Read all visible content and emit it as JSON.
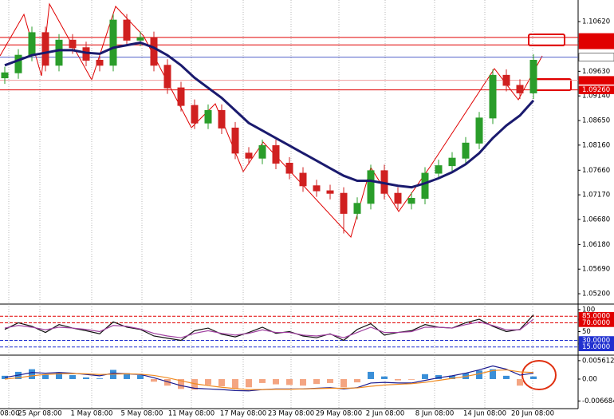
{
  "chart_data": [
    {
      "type": "candlestick",
      "open": [
        1.095,
        1.096,
        1.0995,
        1.104,
        1.0975,
        1.1025,
        1.101,
        1.0985,
        1.0975,
        1.1065,
        1.1025,
        1.103,
        1.0975,
        1.093,
        1.0895,
        1.086,
        1.0885,
        1.085,
        1.08,
        1.079,
        1.0815,
        1.078,
        1.076,
        1.0735,
        1.0725,
        1.072,
        1.068,
        1.07,
        1.0765,
        1.072,
        1.07,
        1.071,
        1.076,
        1.0775,
        1.079,
        1.082,
        1.087,
        1.0955,
        1.0935,
        1.092
      ],
      "high": [
        1.0972,
        1.1007,
        1.1052,
        1.1052,
        1.1037,
        1.1037,
        1.1022,
        1.0997,
        1.1077,
        1.1077,
        1.1042,
        1.1042,
        1.0987,
        1.0942,
        1.0907,
        1.0897,
        1.0897,
        1.0862,
        1.0812,
        1.0827,
        1.0827,
        1.0792,
        1.0772,
        1.0747,
        1.0737,
        1.0732,
        1.0712,
        1.0777,
        1.0777,
        1.0732,
        1.0722,
        1.0772,
        1.0787,
        1.0802,
        1.0832,
        1.0882,
        1.0967,
        1.0967,
        1.0947,
        1.0997
      ],
      "low": [
        1.0938,
        1.0948,
        1.0983,
        1.0963,
        1.0963,
        1.0998,
        1.0973,
        1.0963,
        1.0963,
        1.1013,
        1.1013,
        1.0963,
        1.0918,
        1.0883,
        1.0848,
        1.0848,
        1.0838,
        1.0788,
        1.0778,
        1.0778,
        1.0768,
        1.0748,
        1.0723,
        1.0713,
        1.0708,
        1.064,
        1.0668,
        1.0688,
        1.0708,
        1.0688,
        1.0688,
        1.0698,
        1.0748,
        1.0763,
        1.0778,
        1.0808,
        1.0858,
        1.0923,
        1.0908,
        1.0908
      ],
      "close": [
        1.096,
        1.0995,
        1.104,
        1.0975,
        1.1025,
        1.101,
        1.0985,
        1.0975,
        1.1065,
        1.1025,
        1.103,
        1.0975,
        1.093,
        1.0895,
        1.086,
        1.0885,
        1.085,
        1.08,
        1.079,
        1.0815,
        1.078,
        1.076,
        1.0735,
        1.0725,
        1.072,
        1.068,
        1.07,
        1.0765,
        1.072,
        1.07,
        1.071,
        1.076,
        1.0775,
        1.079,
        1.082,
        1.087,
        1.0955,
        1.0935,
        1.092,
        1.0985
      ],
      "up_color": "#2a9d2a",
      "down_color": "#d02020",
      "series": [
        {
          "color": "#1a1a6e",
          "values": [
            1.0975,
            1.0985,
            1.0995,
            1.1,
            1.1005,
            1.1005,
            1.1,
            1.0998,
            1.101,
            1.1015,
            1.102,
            1.101,
            1.0995,
            1.0975,
            1.095,
            1.093,
            1.091,
            1.0885,
            1.086,
            1.0845,
            1.083,
            1.0815,
            1.08,
            1.0785,
            1.077,
            1.0755,
            1.0745,
            1.0745,
            1.074,
            1.0735,
            1.0732,
            1.074,
            1.075,
            1.0762,
            1.0778,
            1.08,
            1.083,
            1.0855,
            1.0875,
            1.0905
          ]
        }
      ],
      "ylim": [
        1.0501,
        1.1105
      ],
      "yticks": [
        {
          "value": 1.1062,
          "label": "1.10620"
        },
        {
          "value": 1.0963,
          "label": "1.09630"
        },
        {
          "value": 1.0914,
          "label": "1.09140"
        },
        {
          "value": 1.0865,
          "label": "1.08650"
        },
        {
          "value": 1.0816,
          "label": "1.08160"
        },
        {
          "value": 1.0766,
          "label": "1.07660"
        },
        {
          "value": 1.0717,
          "label": "1.07170"
        },
        {
          "value": 1.0668,
          "label": "1.06680"
        },
        {
          "value": 1.0618,
          "label": "1.06180"
        },
        {
          "value": 1.0569,
          "label": "1.05690"
        },
        {
          "value": 1.052,
          "label": "1.05200"
        }
      ],
      "levels": [
        {
          "value": 1.10305,
          "color": "#e00000",
          "box": "#e00000"
        },
        {
          "value": 1.10155,
          "color": "#e00000",
          "box": "#e00000"
        },
        {
          "value": 1.09911,
          "color": "#5060c8",
          "box": "#ffffff"
        },
        {
          "value": 1.09451,
          "color": "#f0a0a0",
          "box": "#e00000"
        },
        {
          "value": 1.0926,
          "label": "1.09260",
          "color": "#e00000",
          "box": "#e00000"
        }
      ],
      "x_labels": [
        "08:00",
        "25 Apr 08:00",
        "1 May 08:00",
        "5 May 08:00",
        "11 May 08:00",
        "17 May 08:00",
        "23 May 08:00",
        "29 May 08:00",
        "2 Jun 08:00",
        "8 Jun 08:00",
        "14 Jun 08:00",
        "20 Jun 08:00"
      ]
    },
    {
      "type": "line",
      "series": [
        {
          "color": "#111111",
          "values": [
            55,
            70,
            62,
            48,
            66,
            58,
            52,
            45,
            72,
            60,
            55,
            40,
            35,
            30,
            52,
            58,
            44,
            38,
            48,
            60,
            46,
            50,
            40,
            36,
            45,
            30,
            55,
            68,
            42,
            48,
            52,
            66,
            60,
            58,
            70,
            78,
            62,
            50,
            55,
            88
          ]
        },
        {
          "color": "#a040a0",
          "values": [
            58,
            64,
            60,
            54,
            60,
            58,
            55,
            50,
            64,
            62,
            56,
            46,
            40,
            36,
            46,
            52,
            46,
            42,
            46,
            54,
            48,
            48,
            42,
            40,
            44,
            36,
            48,
            60,
            48,
            48,
            50,
            60,
            60,
            58,
            66,
            72,
            64,
            54,
            54,
            78
          ]
        }
      ],
      "ylim": [
        0,
        109
      ],
      "yticks": [
        100,
        50
      ],
      "levels": [
        {
          "value": 85,
          "label": "85.0000",
          "color": "#e00000",
          "box": "#e00000"
        },
        {
          "value": 70,
          "label": "70.0000",
          "color": "#e00000",
          "box": "#e00000"
        },
        {
          "value": 30,
          "label": "30.0000",
          "color": "#2030d0",
          "box": "#2030d0"
        },
        {
          "value": 15,
          "label": "15.0000",
          "color": "#2030d0",
          "box": "#2030d0"
        }
      ]
    },
    {
      "type": "bar",
      "values": [
        0.001,
        0.0022,
        0.003,
        0.0015,
        0.002,
        0.0012,
        0.0005,
        0.0002,
        0.0028,
        0.0018,
        0.0012,
        -0.0008,
        -0.002,
        -0.003,
        -0.0032,
        -0.0018,
        -0.0022,
        -0.0028,
        -0.0025,
        -0.0012,
        -0.0016,
        -0.0018,
        -0.002,
        -0.0015,
        -0.0012,
        -0.0025,
        -0.001,
        0.0022,
        0.0008,
        -0.0004,
        -0.0002,
        0.0015,
        0.0012,
        0.001,
        0.0018,
        0.0026,
        0.003,
        0.001,
        -0.002,
        0.0008
      ],
      "color": "#3a8fd8",
      "negative_color": "#f4a582",
      "series": [
        {
          "color": "#1a1a8e",
          "values": [
            0.0005,
            0.0012,
            0.002,
            0.0018,
            0.002,
            0.0018,
            0.0014,
            0.001,
            0.0018,
            0.0016,
            0.0014,
            0.0004,
            -0.0008,
            -0.002,
            -0.0028,
            -0.003,
            -0.0032,
            -0.0035,
            -0.0036,
            -0.0032,
            -0.003,
            -0.003,
            -0.003,
            -0.0028,
            -0.0026,
            -0.003,
            -0.0026,
            -0.0012,
            -0.001,
            -0.0012,
            -0.0012,
            -0.0004,
            0.0004,
            0.001,
            0.0018,
            0.0028,
            0.004,
            0.003,
            0.0012,
            0.0018
          ]
        },
        {
          "color": "#f08a20",
          "values": [
            0.0,
            0.0004,
            0.001,
            0.0014,
            0.0016,
            0.0017,
            0.0016,
            0.0014,
            0.0015,
            0.0016,
            0.0015,
            0.0011,
            0.0004,
            -0.0005,
            -0.0014,
            -0.002,
            -0.0025,
            -0.0029,
            -0.0032,
            -0.0032,
            -0.0031,
            -0.0031,
            -0.003,
            -0.0029,
            -0.0028,
            -0.0028,
            -0.0027,
            -0.0022,
            -0.0018,
            -0.0016,
            -0.0014,
            -0.001,
            -0.0004,
            0.0002,
            0.0008,
            0.0016,
            0.0026,
            0.0028,
            0.0022,
            0.002
          ]
        }
      ],
      "ylim": [
        -0.009,
        0.0068
      ],
      "yticks": [
        0.0056125,
        {
          "value": 0,
          "label": "0.00"
        },
        -0.006684
      ]
    }
  ]
}
